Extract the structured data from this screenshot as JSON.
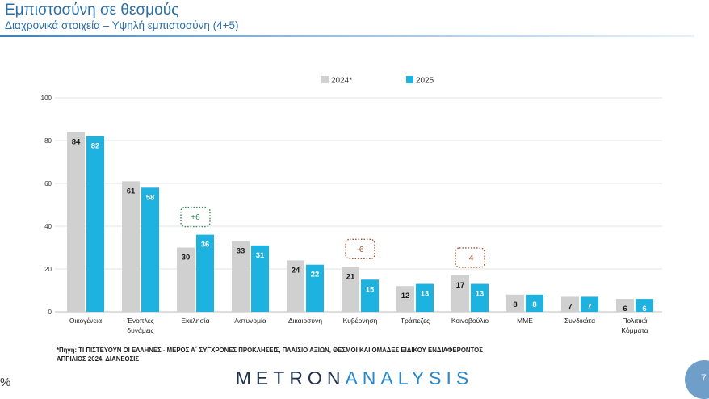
{
  "header": {
    "title": "Εμπιστοσύνη σε θεσμούς",
    "subtitle": "Διαχρονικά στοιχεία – Υψηλή εμπιστοσύνη (4+5)"
  },
  "footnote": {
    "line1": "*Πηγή: ΤΙ ΠΙΣΤΕΥΟΥΝ ΟΙ ΕΛΛΗΝΕΣ - ΜΕΡΟΣ Α΄ ΣΥΓΧΡΟΝΕΣ ΠΡΟΚΛΗΣΕΙΣ, ΠΛΑΙΣΙΟ ΑΞΙΩΝ, ΘΕΣΜΟΙ ΚΑΙ ΟΜΑΔΕΣ ΕΙΔΙΚΟΥ ΕΝΔΙΑΦΕΡΟΝΤΟΣ",
    "line2": "ΑΠΡΙΛΙΟΣ 2024, ΔΙΑΝΕΟΣΙΣ"
  },
  "brand": {
    "part1": "METRON",
    "part2": "ANALYSIS"
  },
  "page": {
    "percent_sign": "%",
    "number": "7"
  },
  "colors": {
    "series_2024": "#d0d0d0",
    "series_2025": "#1eb2e0",
    "positive_change": "#2e8b57",
    "negative_change": "#a0522d"
  },
  "chart_data": {
    "type": "bar",
    "categories": [
      "Οικογένεια",
      "Ένοπλες δυνάμεις",
      "Εκκλησία",
      "Αστυνομία",
      "Δικαιοσύνη",
      "Κυβέρνηση",
      "Τράπεζες",
      "Κοινοβούλιο",
      "ΜΜΕ",
      "Συνδικάτα",
      "Πολιτικά Κόμματα"
    ],
    "category_lines": [
      [
        "Οικογένεια"
      ],
      [
        "Ένοπλες",
        "δυνάμεις"
      ],
      [
        "Εκκλησία"
      ],
      [
        "Αστυνομία"
      ],
      [
        "Δικαιοσύνη"
      ],
      [
        "Κυβέρνηση"
      ],
      [
        "Τράπεζες"
      ],
      [
        "Κοινοβούλιο"
      ],
      [
        "ΜΜΕ"
      ],
      [
        "Συνδικάτα"
      ],
      [
        "Πολιτικά",
        "Κόμματα"
      ]
    ],
    "series": [
      {
        "name": "2024*",
        "values": [
          84,
          61,
          30,
          33,
          24,
          21,
          12,
          17,
          8,
          7,
          6
        ]
      },
      {
        "name": "2025",
        "values": [
          82,
          58,
          36,
          31,
          22,
          15,
          13,
          13,
          8,
          7,
          6
        ]
      }
    ],
    "annotations": [
      {
        "category": "Εκκλησία",
        "text": "+6"
      },
      {
        "category": "Κυβέρνηση",
        "text": "-6"
      },
      {
        "category": "Κοινοβούλιο",
        "text": "-4"
      }
    ],
    "ylim": [
      0,
      100
    ],
    "yticks": [
      0,
      20,
      40,
      60,
      80,
      100
    ],
    "grid": true,
    "legend": "top-center",
    "title": "",
    "xlabel": "",
    "ylabel": ""
  }
}
